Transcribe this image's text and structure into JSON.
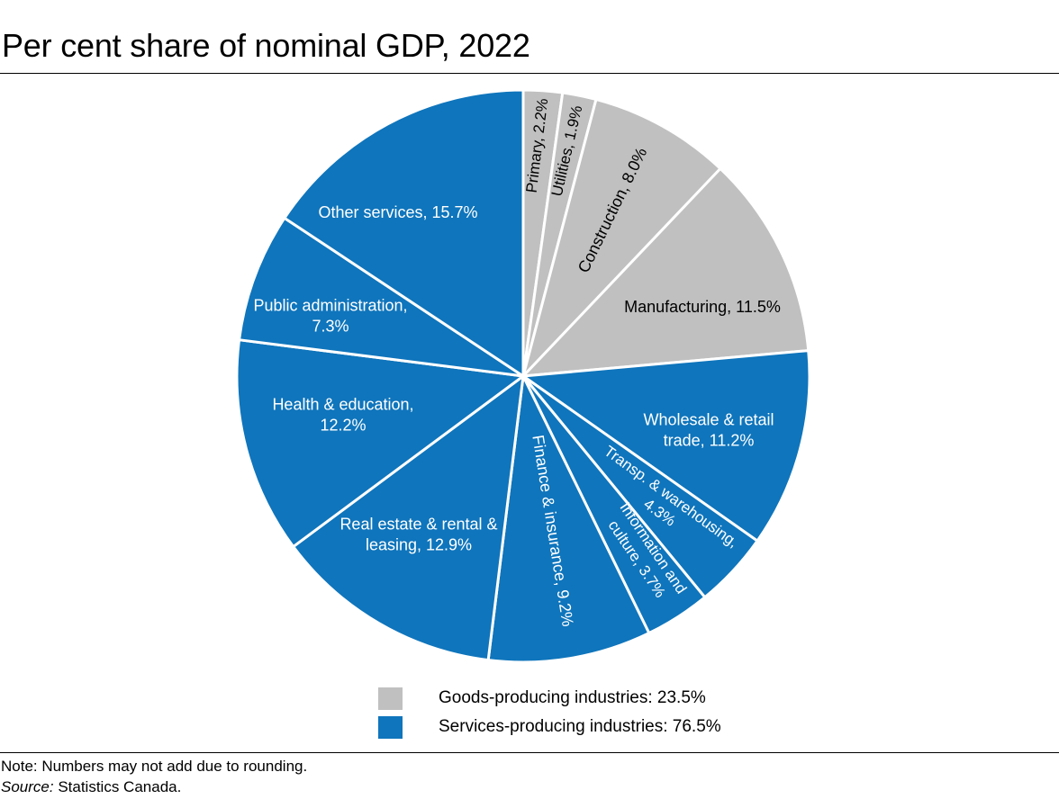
{
  "chart_data": {
    "type": "pie",
    "title": "Per cent share of nominal GDP, 2022",
    "slices": [
      {
        "label": "Primary, 2.2%",
        "value": 2.2,
        "group": "goods"
      },
      {
        "label": "Utilities, 1.9%",
        "value": 1.9,
        "group": "goods"
      },
      {
        "label": "Construction, 8.0%",
        "value": 8.0,
        "group": "goods"
      },
      {
        "label": "Manufacturing, 11.5%",
        "value": 11.5,
        "group": "goods"
      },
      {
        "label": "Wholesale & retail trade, 11.2%",
        "value": 11.2,
        "group": "services"
      },
      {
        "label": "Transp. & warehousing, 4.3%",
        "value": 4.3,
        "group": "services"
      },
      {
        "label": "Information and culture, 3.7%",
        "value": 3.7,
        "group": "services"
      },
      {
        "label": "Finance & insurance, 9.2%",
        "value": 9.2,
        "group": "services"
      },
      {
        "label": "Real estate & rental & leasing, 12.9%",
        "value": 12.9,
        "group": "services"
      },
      {
        "label": "Health & education, 12.2%",
        "value": 12.2,
        "group": "services"
      },
      {
        "label": "Public administration, 7.3%",
        "value": 7.3,
        "group": "services"
      },
      {
        "label": "Other services, 15.7%",
        "value": 15.7,
        "group": "services"
      }
    ],
    "legend": [
      {
        "label": "Goods-producing industries: 23.5%",
        "group": "goods"
      },
      {
        "label": "Services-producing industries: 76.5%",
        "group": "services"
      }
    ],
    "legend_position": "bottom-center"
  },
  "colors": {
    "goods": "#c0c0c0",
    "services": "#0f75bc",
    "slice_border": "#ffffff"
  },
  "footer": {
    "note": "Note: Numbers may not add due to rounding.",
    "source_label": "Source:",
    "source_text": " Statistics Canada."
  }
}
